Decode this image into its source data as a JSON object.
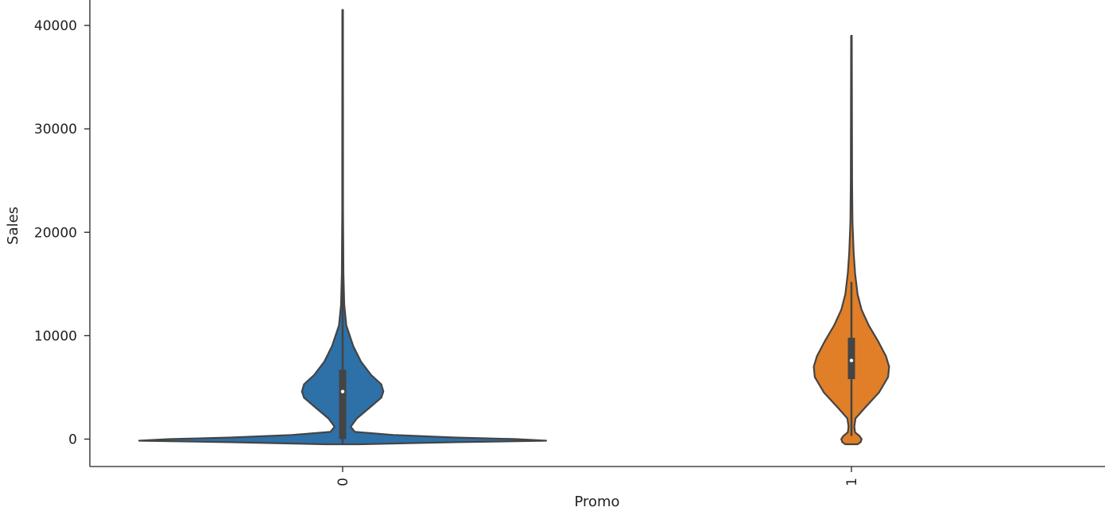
{
  "chart_data": {
    "type": "violin",
    "title": "",
    "xlabel": "Promo",
    "ylabel": "Sales",
    "ylim": [
      -2600,
      42500
    ],
    "y_ticks": [
      0,
      10000,
      20000,
      30000,
      40000
    ],
    "x_tick_rotation": "vertical",
    "grid": false,
    "legend": "none",
    "categories": [
      "0",
      "1"
    ],
    "series": [
      {
        "category": "0",
        "color": "#2e70a8",
        "min": -500,
        "max": 41500,
        "q1": 0,
        "median": 4600,
        "q3": 6700,
        "whisker_low": -500,
        "whisker_high": 16700,
        "density_profile": [
          [
            -500,
            0.08
          ],
          [
            -300,
            0.55
          ],
          [
            -150,
            1.0
          ],
          [
            0,
            0.85
          ],
          [
            150,
            0.55
          ],
          [
            400,
            0.25
          ],
          [
            700,
            0.06
          ],
          [
            1200,
            0.04
          ],
          [
            2000,
            0.07
          ],
          [
            3000,
            0.13
          ],
          [
            4000,
            0.19
          ],
          [
            4600,
            0.2
          ],
          [
            5300,
            0.19
          ],
          [
            6200,
            0.14
          ],
          [
            7500,
            0.09
          ],
          [
            9000,
            0.052
          ],
          [
            11000,
            0.018
          ],
          [
            13000,
            0.008
          ],
          [
            16000,
            0.004
          ],
          [
            22000,
            0.002
          ],
          [
            41500,
            0.0015
          ]
        ]
      },
      {
        "category": "1",
        "color": "#e07f27",
        "min": -500,
        "max": 39000,
        "q1": 5800,
        "median": 7600,
        "q3": 9800,
        "whisker_low": 300,
        "whisker_high": 15200,
        "density_profile": [
          [
            -500,
            0.03
          ],
          [
            -300,
            0.045
          ],
          [
            0,
            0.05
          ],
          [
            300,
            0.04
          ],
          [
            650,
            0.018
          ],
          [
            1200,
            0.014
          ],
          [
            2000,
            0.02
          ],
          [
            3000,
            0.065
          ],
          [
            4500,
            0.135
          ],
          [
            6000,
            0.18
          ],
          [
            7000,
            0.185
          ],
          [
            8000,
            0.17
          ],
          [
            9500,
            0.13
          ],
          [
            11000,
            0.085
          ],
          [
            12500,
            0.05
          ],
          [
            14000,
            0.03
          ],
          [
            16000,
            0.018
          ],
          [
            18000,
            0.011
          ],
          [
            21000,
            0.005
          ],
          [
            25000,
            0.003
          ],
          [
            39000,
            0.0015
          ]
        ]
      }
    ]
  }
}
